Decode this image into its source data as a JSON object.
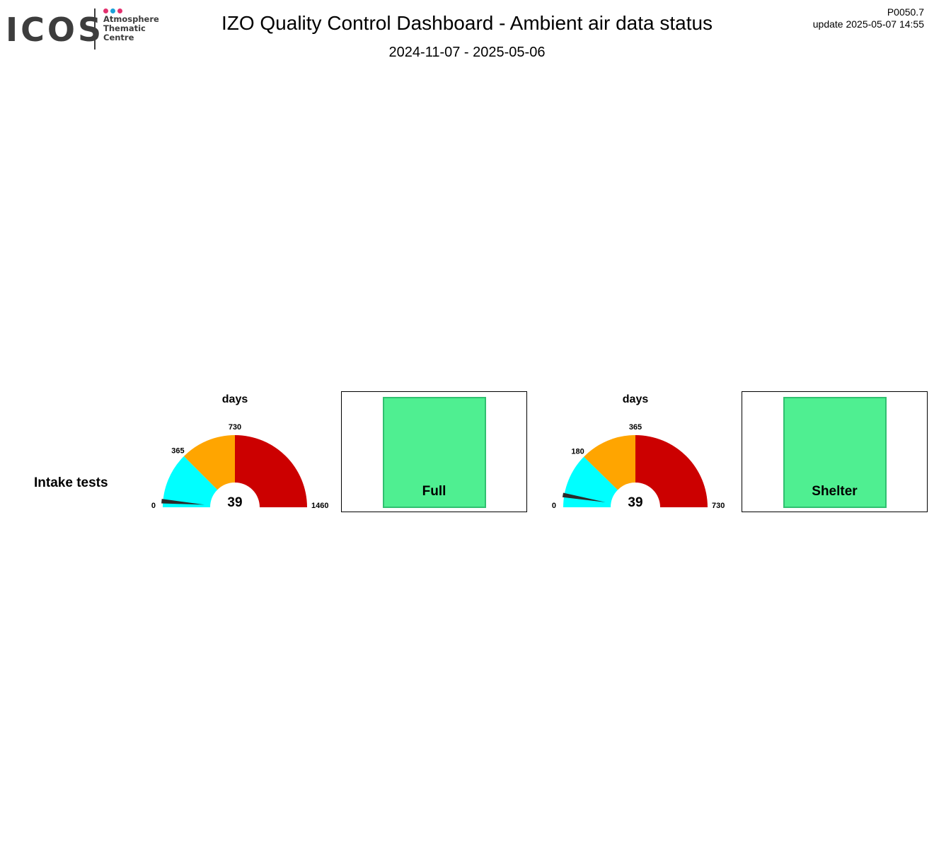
{
  "logo": {
    "brand": "ICOS",
    "lines": [
      "Atmosphere",
      "Thematic",
      "Centre"
    ],
    "dot_colors": [
      "#e3306e",
      "#1aa1d9",
      "#e3306e"
    ]
  },
  "header": {
    "title": "IZO  Quality Control Dashboard - Ambient air data status",
    "subtitle": "2024-11-07 - 2025-05-06",
    "code": "P0050.7",
    "update": "update  2025-05-07 14:55"
  },
  "row": {
    "label": "Intake tests",
    "statuses": [
      {
        "label": "Full",
        "color": "#4fef91"
      },
      {
        "label": "Shelter",
        "color": "#4fef91"
      }
    ]
  },
  "colors": {
    "green": "#4fef91",
    "cyan": "#00ffff",
    "orange": "#ffa500",
    "red": "#cc0000",
    "needle": "#2b2b2b"
  },
  "chart_data": [
    {
      "type": "gauge",
      "title": "days",
      "min": 0,
      "max": 1460,
      "value": 39,
      "value_label": "39",
      "tick_labels": [
        "0",
        "365",
        "730",
        "1460"
      ],
      "bands": [
        {
          "from": 0,
          "to": 365,
          "color": "#00ffff"
        },
        {
          "from": 365,
          "to": 730,
          "color": "#ffa500"
        },
        {
          "from": 730,
          "to": 1460,
          "color": "#cc0000"
        }
      ]
    },
    {
      "type": "gauge",
      "title": "days",
      "min": 0,
      "max": 730,
      "value": 39,
      "value_label": "39",
      "tick_labels": [
        "0",
        "180",
        "365",
        "730"
      ],
      "bands": [
        {
          "from": 0,
          "to": 180,
          "color": "#00ffff"
        },
        {
          "from": 180,
          "to": 365,
          "color": "#ffa500"
        },
        {
          "from": 365,
          "to": 730,
          "color": "#cc0000"
        }
      ]
    }
  ]
}
